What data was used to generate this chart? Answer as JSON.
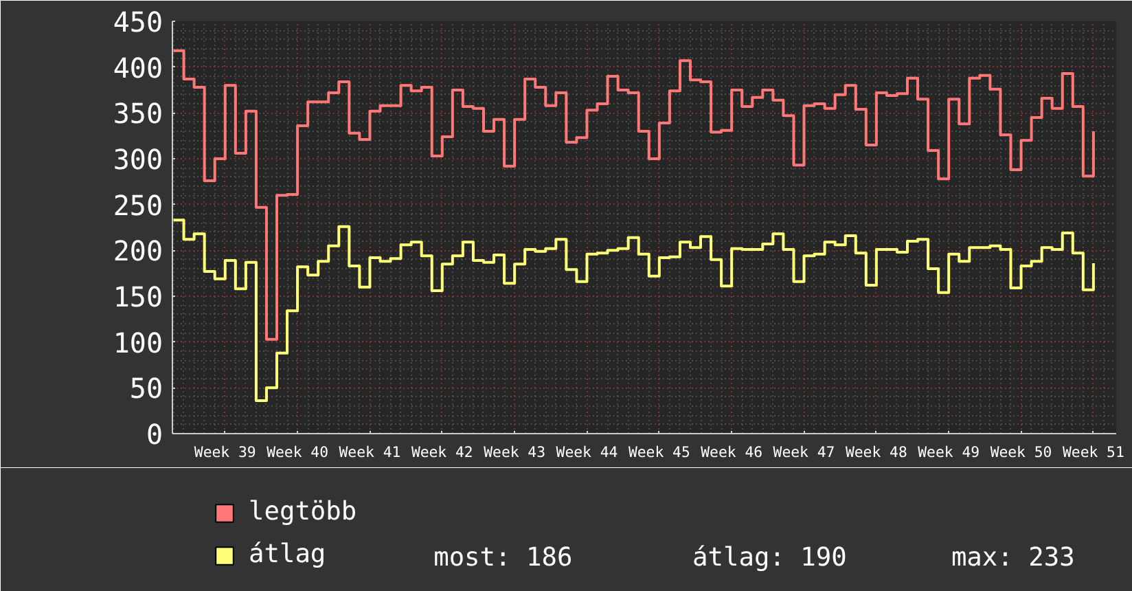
{
  "chart_data": {
    "type": "step",
    "categories": [
      null,
      null,
      null,
      null,
      null,
      "Week 39",
      null,
      null,
      null,
      null,
      null,
      null,
      "Week 40",
      null,
      null,
      null,
      null,
      null,
      null,
      "Week 41",
      null,
      null,
      null,
      null,
      null,
      null,
      "Week 42",
      null,
      null,
      null,
      null,
      null,
      null,
      "Week 43",
      null,
      null,
      null,
      null,
      null,
      null,
      "Week 44",
      null,
      null,
      null,
      null,
      null,
      null,
      "Week 45",
      null,
      null,
      null,
      null,
      null,
      null,
      "Week 46",
      null,
      null,
      null,
      null,
      null,
      null,
      "Week 47",
      null,
      null,
      null,
      null,
      null,
      null,
      "Week 48",
      null,
      null,
      null,
      null,
      null,
      null,
      "Week 49",
      null,
      null,
      null,
      null,
      null,
      null,
      "Week 50",
      null,
      null,
      null,
      null,
      null,
      null,
      "Week 51"
    ],
    "series": [
      {
        "name": "legtöbb",
        "color": "#ff7777",
        "values": [
          418,
          387,
          378,
          276,
          300,
          380,
          306,
          352,
          247,
          103,
          260,
          261,
          336,
          362,
          362,
          372,
          384,
          328,
          321,
          352,
          358,
          358,
          380,
          374,
          378,
          303,
          324,
          375,
          357,
          355,
          330,
          343,
          292,
          343,
          387,
          378,
          358,
          372,
          318,
          323,
          353,
          360,
          390,
          375,
          372,
          330,
          300,
          339,
          374,
          407,
          386,
          384,
          329,
          331,
          375,
          357,
          367,
          375,
          364,
          347,
          293,
          358,
          360,
          355,
          370,
          380,
          354,
          315,
          372,
          369,
          371,
          388,
          365,
          309,
          278,
          365,
          338,
          388,
          391,
          376,
          326,
          288,
          320,
          345,
          366,
          355,
          393,
          357,
          281,
          330
        ]
      },
      {
        "name": "átlag",
        "color": "#ffff77",
        "values": [
          233,
          212,
          218,
          177,
          169,
          189,
          158,
          187,
          36,
          50,
          88,
          134,
          182,
          173,
          188,
          205,
          226,
          183,
          160,
          192,
          188,
          191,
          206,
          209,
          194,
          156,
          185,
          194,
          209,
          189,
          187,
          195,
          164,
          185,
          201,
          199,
          202,
          212,
          179,
          166,
          196,
          197,
          200,
          202,
          214,
          196,
          172,
          192,
          193,
          209,
          203,
          215,
          190,
          161,
          202,
          201,
          201,
          207,
          218,
          201,
          166,
          194,
          196,
          209,
          206,
          216,
          197,
          162,
          201,
          201,
          198,
          210,
          212,
          180,
          154,
          196,
          188,
          203,
          203,
          205,
          201,
          159,
          183,
          188,
          203,
          201,
          219,
          197,
          157,
          186
        ]
      }
    ],
    "ylim": [
      0,
      450
    ],
    "yticks": [
      0,
      50,
      100,
      150,
      200,
      250,
      300,
      350,
      400,
      450
    ],
    "grid": true,
    "legend": "bottom left",
    "annotations": [
      "most: 186",
      "átlag: 190",
      "max: 233"
    ]
  }
}
